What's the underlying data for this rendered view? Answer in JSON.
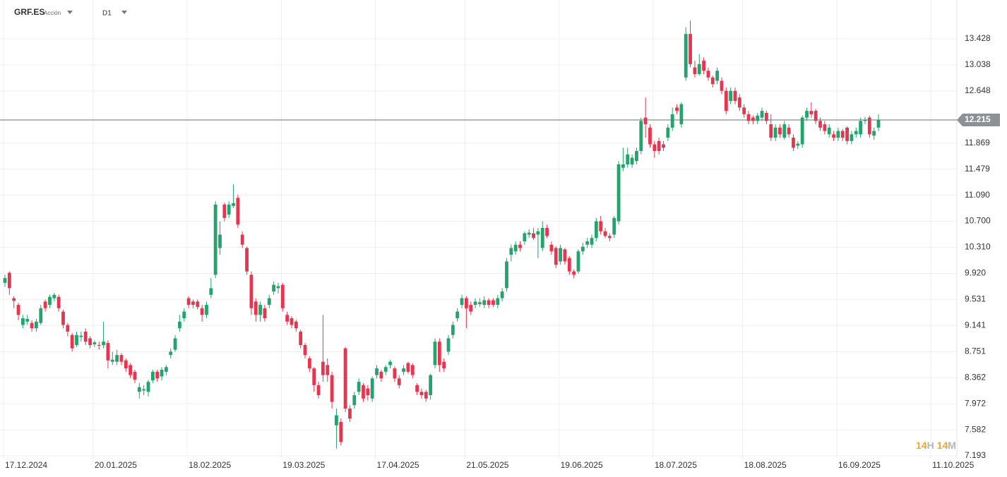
{
  "chart_data": {
    "type": "candlestick",
    "symbol": "GRF.ES",
    "instrument_type": "Acción",
    "timeframe": "D1",
    "countdown": {
      "hours": "14",
      "hours_unit": "H",
      "minutes": "14",
      "minutes_unit": "M"
    },
    "up_color": "#23a36d",
    "down_color": "#e8344e",
    "grid": true,
    "last_price": 12.215,
    "ylim": [
      7.151,
      14.008
    ],
    "yticks": [
      7.193,
      7.582,
      7.972,
      8.362,
      8.751,
      9.141,
      9.531,
      {
        "value": 9.92,
        "label": "9.920"
      },
      {
        "value": 10.31,
        "label": "10.310"
      },
      {
        "value": 10.7,
        "label": "10.700"
      },
      {
        "value": 11.09,
        "label": "11.090"
      },
      11.479,
      11.869,
      12.648,
      13.038,
      13.428
    ],
    "categories": [
      "17.12.2024",
      null,
      null,
      null,
      null,
      null,
      null,
      null,
      null,
      null,
      null,
      null,
      null,
      null,
      null,
      null,
      null,
      null,
      null,
      null,
      "20.01.2025",
      null,
      null,
      null,
      null,
      null,
      null,
      null,
      null,
      null,
      null,
      null,
      null,
      null,
      null,
      null,
      null,
      null,
      null,
      null,
      null,
      "18.02.2025",
      null,
      null,
      null,
      null,
      null,
      null,
      null,
      null,
      null,
      null,
      null,
      null,
      null,
      null,
      null,
      null,
      null,
      null,
      null,
      null,
      "19.03.2025",
      null,
      null,
      null,
      null,
      null,
      null,
      null,
      null,
      null,
      null,
      null,
      null,
      null,
      null,
      null,
      null,
      null,
      null,
      null,
      null,
      "17.04.2025",
      null,
      null,
      null,
      null,
      null,
      null,
      null,
      null,
      null,
      null,
      null,
      null,
      null,
      null,
      null,
      null,
      null,
      null,
      null,
      "21.05.2025",
      null,
      null,
      null,
      null,
      null,
      null,
      null,
      null,
      null,
      null,
      null,
      null,
      null,
      null,
      null,
      null,
      null,
      null,
      null,
      null,
      "19.06.2025",
      null,
      null,
      null,
      null,
      null,
      null,
      null,
      null,
      null,
      null,
      null,
      null,
      null,
      null,
      null,
      null,
      null,
      null,
      null,
      null,
      "18.07.2025",
      null,
      null,
      null,
      null,
      null,
      null,
      null,
      null,
      null,
      null,
      null,
      null,
      null,
      null,
      null,
      null,
      null,
      null,
      null,
      "18.08.2025",
      null,
      null,
      null,
      null,
      null,
      null,
      null,
      null,
      null,
      null,
      null,
      null,
      null,
      null,
      null,
      null,
      null,
      null,
      null,
      null,
      "16.09.2025",
      null,
      null,
      null,
      null,
      null,
      null,
      null,
      null,
      null,
      null,
      null,
      null,
      null,
      null,
      null,
      null,
      null,
      null,
      null,
      null,
      "11.10.2025",
      null,
      null,
      null,
      null,
      null
    ],
    "open": [
      9.78,
      9.93,
      9.55,
      9.45,
      9.15,
      9.2,
      9.18,
      9.1,
      9.18,
      9.5,
      9.45,
      9.55,
      9.57,
      9.35,
      9.15,
      9.0,
      8.85,
      8.97,
      9.05,
      8.95,
      8.86,
      8.85,
      8.85,
      8.88,
      8.6,
      8.6,
      8.7,
      8.62,
      8.55,
      8.45,
      8.15,
      8.17,
      8.15,
      8.32,
      8.45,
      8.38,
      8.45,
      8.7,
      8.78,
      9.1,
      9.25,
      9.55,
      9.5,
      9.5,
      9.4,
      9.3,
      9.6,
      9.9,
      10.3,
      10.95,
      10.8,
      10.93,
      11.05,
      10.5,
      10.3,
      9.9,
      9.5,
      9.3,
      9.4,
      9.45,
      9.65,
      9.7,
      9.75,
      9.3,
      9.25,
      9.2,
      9.05,
      8.85,
      8.65,
      8.5,
      8.25,
      8.6,
      8.55,
      8.4,
      7.65,
      7.7,
      8.8,
      7.9,
      7.95,
      8.15,
      8.25,
      8.2,
      8.05,
      8.4,
      8.45,
      8.45,
      8.55,
      8.5,
      8.35,
      8.45,
      8.58,
      8.55,
      8.25,
      8.15,
      8.15,
      8.1,
      8.55,
      8.9,
      8.6,
      8.75,
      9.0,
      9.25,
      9.45,
      9.55,
      9.45,
      9.45,
      9.46,
      9.45,
      9.52,
      9.52,
      9.45,
      9.55,
      9.7,
      10.2,
      10.25,
      10.35,
      10.4,
      10.5,
      10.52,
      10.5,
      10.3,
      10.6,
      10.35,
      10.3,
      10.1,
      10.28,
      10.15,
      9.95,
      9.95,
      10.25,
      10.35,
      10.35,
      10.45,
      10.7,
      10.55,
      10.48,
      10.5,
      10.7,
      11.5,
      11.55,
      11.55,
      11.6,
      11.75,
      12.25,
      12.1,
      11.85,
      11.9,
      11.85,
      11.95,
      12.1,
      12.4,
      12.15,
      12.85,
      13.5,
      13.0,
      12.9,
      13.1,
      12.95,
      12.85,
      12.8,
      12.8,
      12.65,
      12.5,
      12.65,
      12.55,
      12.4,
      12.3,
      12.25,
      12.2,
      12.25,
      12.32,
      12.15,
      11.95,
      12.1,
      11.95,
      12.1,
      11.95,
      11.83,
      11.85,
      12.25,
      12.35,
      12.35,
      12.2,
      12.15,
      12.0,
      12.0,
      11.95,
      12.05,
      12.1,
      11.9,
      12.0,
      12.0,
      12.2,
      12.25,
      11.98,
      12.1,
      null,
      null,
      null,
      null,
      null,
      null,
      null,
      null,
      null,
      null,
      null,
      null,
      null,
      null,
      null,
      null,
      null
    ],
    "high": [
      9.9,
      9.95,
      9.58,
      9.48,
      9.3,
      9.3,
      9.22,
      9.24,
      9.45,
      9.53,
      9.6,
      9.63,
      9.6,
      9.38,
      9.18,
      9.03,
      9.05,
      9.05,
      9.1,
      8.98,
      8.92,
      8.9,
      9.2,
      8.92,
      8.75,
      8.78,
      8.73,
      8.65,
      8.58,
      8.48,
      8.28,
      8.25,
      8.33,
      8.48,
      8.48,
      8.52,
      8.55,
      8.8,
      9.0,
      9.3,
      9.4,
      9.58,
      9.53,
      9.53,
      9.45,
      9.5,
      9.85,
      11.0,
      10.7,
      10.98,
      11.0,
      11.25,
      11.1,
      10.55,
      10.32,
      9.95,
      9.55,
      9.5,
      9.45,
      9.6,
      9.8,
      9.78,
      9.78,
      9.35,
      9.28,
      9.23,
      9.08,
      8.88,
      8.68,
      8.52,
      8.3,
      9.3,
      8.65,
      8.45,
      7.9,
      7.75,
      8.82,
      7.95,
      8.15,
      8.35,
      8.28,
      8.25,
      8.38,
      8.55,
      8.48,
      8.55,
      8.63,
      8.53,
      8.4,
      8.55,
      8.6,
      8.58,
      8.28,
      8.2,
      8.18,
      8.42,
      8.95,
      8.95,
      8.65,
      9.0,
      9.2,
      9.4,
      9.6,
      9.58,
      9.5,
      9.55,
      9.55,
      9.58,
      9.55,
      9.55,
      9.6,
      9.7,
      10.15,
      10.35,
      10.4,
      10.4,
      10.55,
      10.58,
      10.6,
      10.6,
      10.7,
      10.65,
      10.4,
      10.33,
      10.35,
      10.3,
      10.18,
      9.98,
      10.28,
      10.38,
      10.45,
      10.5,
      10.75,
      10.78,
      10.6,
      10.52,
      10.78,
      11.6,
      11.8,
      11.8,
      11.7,
      11.8,
      12.25,
      12.55,
      12.15,
      11.9,
      11.95,
      11.9,
      12.15,
      12.4,
      12.45,
      12.48,
      13.6,
      13.7,
      13.1,
      13.2,
      13.15,
      13.0,
      12.88,
      13.0,
      12.85,
      12.7,
      12.7,
      12.7,
      12.6,
      12.45,
      12.35,
      12.28,
      12.32,
      12.4,
      12.35,
      12.3,
      12.15,
      12.15,
      12.2,
      12.15,
      12.0,
      11.9,
      12.28,
      12.4,
      12.48,
      12.38,
      12.25,
      12.2,
      12.15,
      12.05,
      12.1,
      12.08,
      12.12,
      12.05,
      12.1,
      12.25,
      12.26,
      12.28,
      12.1,
      12.3,
      null,
      null,
      null,
      null,
      null,
      null,
      null,
      null,
      null,
      null,
      null,
      null,
      null,
      null,
      null,
      null,
      null
    ],
    "low": [
      9.72,
      9.6,
      9.4,
      9.22,
      9.1,
      9.15,
      9.05,
      9.05,
      9.15,
      9.35,
      9.4,
      9.5,
      9.35,
      9.1,
      8.98,
      8.75,
      8.82,
      8.9,
      8.85,
      8.8,
      8.82,
      8.78,
      8.8,
      8.5,
      8.55,
      8.55,
      8.55,
      8.45,
      8.35,
      8.28,
      8.05,
      8.1,
      8.08,
      8.28,
      8.3,
      8.32,
      8.4,
      8.65,
      8.75,
      9.05,
      9.2,
      9.4,
      9.4,
      9.38,
      9.2,
      9.25,
      9.55,
      9.85,
      10.2,
      10.7,
      10.75,
      10.9,
      10.6,
      10.3,
      9.9,
      9.3,
      9.2,
      9.2,
      9.2,
      9.4,
      9.6,
      9.62,
      9.35,
      9.15,
      9.1,
      9.05,
      8.8,
      8.65,
      8.45,
      8.15,
      8.05,
      8.3,
      8.3,
      7.9,
      7.3,
      7.35,
      7.85,
      7.7,
      7.9,
      8.1,
      8.0,
      8.02,
      8.0,
      8.35,
      8.3,
      8.4,
      8.5,
      8.3,
      8.2,
      8.4,
      8.42,
      8.35,
      8.1,
      8.05,
      8.0,
      8.03,
      8.5,
      8.45,
      8.45,
      8.7,
      8.95,
      9.2,
      9.4,
      9.1,
      9.3,
      9.4,
      9.42,
      9.4,
      9.4,
      9.42,
      9.4,
      9.5,
      9.65,
      10.1,
      10.2,
      10.25,
      10.35,
      10.45,
      10.42,
      10.15,
      10.25,
      10.45,
      10.2,
      10.0,
      10.05,
      10.05,
      9.9,
      9.85,
      9.92,
      10.2,
      10.3,
      10.3,
      10.4,
      10.5,
      10.45,
      10.4,
      10.45,
      10.65,
      11.45,
      11.5,
      11.5,
      11.55,
      11.7,
      11.95,
      11.8,
      11.65,
      11.7,
      11.75,
      11.9,
      12.05,
      12.3,
      12.1,
      12.8,
      13.0,
      12.85,
      12.88,
      12.9,
      12.8,
      12.7,
      12.75,
      12.6,
      12.3,
      12.45,
      12.45,
      12.35,
      12.25,
      12.15,
      12.15,
      12.15,
      12.2,
      12.15,
      11.9,
      11.9,
      11.95,
      11.92,
      11.95,
      11.75,
      11.78,
      11.8,
      12.2,
      12.25,
      12.15,
      12.05,
      12.0,
      11.95,
      11.9,
      11.9,
      11.9,
      11.85,
      11.85,
      11.95,
      11.95,
      12.15,
      11.95,
      11.92,
      12.05,
      null,
      null,
      null,
      null,
      null,
      null,
      null,
      null,
      null,
      null,
      null,
      null,
      null,
      null,
      null,
      null,
      null
    ],
    "close": [
      9.85,
      9.7,
      9.51,
      9.3,
      9.25,
      9.24,
      9.1,
      9.2,
      9.4,
      9.4,
      9.57,
      9.6,
      9.4,
      9.15,
      9.05,
      8.8,
      9.0,
      8.99,
      8.9,
      8.85,
      8.89,
      8.84,
      8.9,
      8.62,
      8.63,
      8.7,
      8.6,
      8.5,
      8.4,
      8.33,
      8.22,
      8.19,
      8.3,
      8.45,
      8.35,
      8.48,
      8.52,
      8.75,
      8.95,
      9.2,
      9.35,
      9.45,
      9.45,
      9.42,
      9.3,
      9.45,
      9.7,
      10.95,
      10.5,
      10.75,
      10.95,
      10.97,
      10.65,
      10.35,
      9.95,
      9.4,
      9.3,
      9.45,
      9.25,
      9.55,
      9.75,
      9.73,
      9.4,
      9.2,
      9.15,
      9.1,
      8.85,
      8.7,
      8.5,
      8.25,
      8.1,
      8.4,
      8.4,
      8.0,
      7.8,
      7.4,
      7.9,
      7.75,
      8.1,
      8.3,
      8.05,
      8.1,
      8.35,
      8.5,
      8.35,
      8.52,
      8.6,
      8.35,
      8.25,
      8.5,
      8.45,
      8.4,
      8.15,
      8.1,
      8.05,
      8.4,
      8.9,
      8.55,
      8.5,
      8.95,
      9.15,
      9.35,
      9.55,
      9.4,
      9.35,
      9.5,
      9.49,
      9.52,
      9.45,
      9.45,
      9.55,
      9.65,
      10.1,
      10.3,
      10.35,
      10.3,
      10.52,
      10.53,
      10.45,
      10.55,
      10.6,
      10.48,
      10.25,
      10.05,
      10.3,
      10.1,
      9.95,
      9.9,
      10.25,
      10.32,
      10.4,
      10.45,
      10.7,
      10.55,
      10.48,
      10.45,
      10.75,
      11.55,
      11.55,
      11.7,
      11.65,
      11.75,
      12.2,
      12.15,
      11.85,
      11.75,
      11.75,
      11.8,
      12.1,
      12.3,
      12.35,
      12.45,
      13.5,
      13.05,
      12.9,
      13.05,
      12.95,
      12.85,
      12.75,
      12.95,
      12.65,
      12.35,
      12.65,
      12.5,
      12.4,
      12.3,
      12.2,
      12.2,
      12.28,
      12.35,
      12.2,
      11.95,
      12.1,
      12.0,
      12.15,
      12.0,
      11.8,
      11.86,
      12.25,
      12.35,
      12.3,
      12.2,
      12.1,
      12.05,
      12.1,
      11.95,
      12.05,
      11.95,
      11.9,
      12.0,
      12.05,
      12.2,
      12.22,
      12.0,
      12.05,
      12.215,
      null,
      null,
      null,
      null,
      null,
      null,
      null,
      null,
      null,
      null,
      null,
      null,
      null,
      null,
      null,
      null,
      null
    ]
  }
}
